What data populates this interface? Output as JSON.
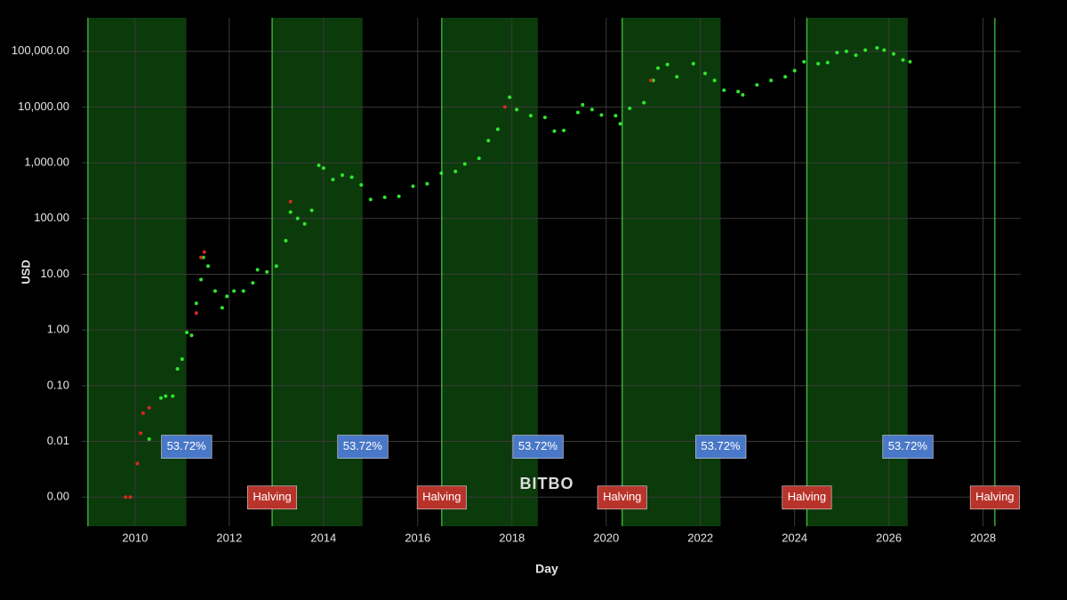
{
  "chart_data": {
    "type": "scatter",
    "y_label": "USD",
    "x_label": "Day",
    "log_y": true,
    "grid": true,
    "watermark": "BITBO",
    "xlim": [
      2008.87,
      2028.8
    ],
    "xticks": [
      2010,
      2012,
      2014,
      2016,
      2018,
      2020,
      2022,
      2024,
      2026,
      2028
    ],
    "ylim": [
      0.0003,
      400000
    ],
    "yticks": [
      {
        "value": 0.001,
        "label": "0.00"
      },
      {
        "value": 0.01,
        "label": "0.01"
      },
      {
        "value": 0.1,
        "label": "0.10"
      },
      {
        "value": 1,
        "label": "1.00"
      },
      {
        "value": 10,
        "label": "10.00"
      },
      {
        "value": 100,
        "label": "100.00"
      },
      {
        "value": 1000,
        "label": "1,000.00"
      },
      {
        "value": 10000,
        "label": "10,000.00"
      },
      {
        "value": 100000,
        "label": "100,000.00"
      }
    ],
    "shaded_periods": [
      [
        2009.0,
        2011.09
      ],
      [
        2012.91,
        2014.83
      ],
      [
        2016.51,
        2018.55
      ],
      [
        2020.34,
        2022.43
      ],
      [
        2024.26,
        2026.4
      ]
    ],
    "shade_color": "#0b3a0b",
    "halving_lines": [
      2009.0,
      2012.91,
      2016.51,
      2020.34,
      2024.26,
      2028.25
    ],
    "halving_line_color": "#3fbf3f",
    "series": [
      {
        "color": "#2fe62f",
        "x": [
          2010.3,
          2010.55,
          2010.65,
          2010.8,
          2010.9,
          2011.0,
          2011.1,
          2011.2,
          2011.3,
          2011.4,
          2011.45,
          2011.55,
          2011.7,
          2011.85,
          2011.95,
          2012.1,
          2012.3,
          2012.5,
          2012.6,
          2012.8,
          2013.0,
          2013.2,
          2013.3,
          2013.45,
          2013.6,
          2013.75,
          2013.9,
          2014.0,
          2014.2,
          2014.4,
          2014.6,
          2014.8,
          2015.0,
          2015.3,
          2015.6,
          2015.9,
          2016.2,
          2016.5,
          2016.8,
          2017.0,
          2017.3,
          2017.5,
          2017.7,
          2017.95,
          2018.1,
          2018.4,
          2018.7,
          2018.9,
          2019.1,
          2019.4,
          2019.5,
          2019.7,
          2019.9,
          2020.2,
          2020.3,
          2020.5,
          2020.8,
          2021.0,
          2021.1,
          2021.3,
          2021.5,
          2021.85,
          2022.1,
          2022.3,
          2022.5,
          2022.8,
          2022.9,
          2023.2,
          2023.5,
          2023.8,
          2024.0,
          2024.2,
          2024.5,
          2024.7,
          2024.9,
          2025.1,
          2025.3,
          2025.5,
          2025.75,
          2025.9,
          2026.1,
          2026.3,
          2026.45
        ],
        "values": [
          0.011,
          0.06,
          0.065,
          0.065,
          0.2,
          0.3,
          0.9,
          0.8,
          3,
          8,
          20,
          14,
          5,
          2.5,
          4,
          5,
          5,
          7,
          12,
          11,
          14,
          40,
          130,
          100,
          80,
          140,
          900,
          800,
          500,
          600,
          550,
          400,
          220,
          240,
          250,
          380,
          420,
          650,
          700,
          950,
          1200,
          2500,
          4000,
          15000,
          9000,
          7000,
          6500,
          3700,
          3800,
          8000,
          11000,
          9000,
          7200,
          7000,
          5000,
          9500,
          12000,
          30000,
          50000,
          58000,
          35000,
          60000,
          40000,
          30000,
          20000,
          19000,
          16500,
          25000,
          30000,
          35000,
          45000,
          65000,
          60000,
          63000,
          95000,
          100000,
          85000,
          105000,
          115000,
          105000,
          90000,
          70000,
          65000
        ]
      },
      {
        "color": "#d42a1f",
        "x": [
          2009.8,
          2009.9,
          2010.05,
          2010.12,
          2010.17,
          2010.3,
          2011.3,
          2011.4,
          2011.47,
          2013.3,
          2017.85,
          2020.95
        ],
        "values": [
          0.001,
          0.001,
          0.004,
          0.014,
          0.032,
          0.04,
          2,
          20,
          25,
          200,
          10000,
          30000
        ]
      }
    ],
    "annotations": [
      {
        "text": "53.72%",
        "x": 2011.09,
        "y": 0.008,
        "color": "#4a78c8"
      },
      {
        "text": "53.72%",
        "x": 2014.83,
        "y": 0.008,
        "color": "#4a78c8"
      },
      {
        "text": "53.72%",
        "x": 2018.55,
        "y": 0.008,
        "color": "#4a78c8"
      },
      {
        "text": "53.72%",
        "x": 2022.43,
        "y": 0.008,
        "color": "#4a78c8"
      },
      {
        "text": "53.72%",
        "x": 2026.4,
        "y": 0.008,
        "color": "#4a78c8"
      },
      {
        "text": "Halving",
        "x": 2012.91,
        "y": 0.00098,
        "color": "#b8342b"
      },
      {
        "text": "Halving",
        "x": 2016.51,
        "y": 0.00098,
        "color": "#b8342b"
      },
      {
        "text": "Halving",
        "x": 2020.34,
        "y": 0.00098,
        "color": "#b8342b"
      },
      {
        "text": "Halving",
        "x": 2024.26,
        "y": 0.00098,
        "color": "#b8342b"
      },
      {
        "text": "Halving",
        "x": 2028.25,
        "y": 0.00098,
        "color": "#b8342b"
      }
    ]
  }
}
